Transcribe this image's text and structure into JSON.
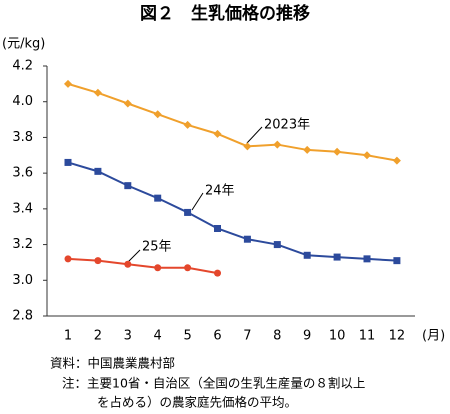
{
  "chart_data": {
    "type": "line",
    "title": "図２　生乳価格の推移",
    "y_label": "(元/kg)",
    "x_label": "(月)",
    "categories": [
      "1",
      "2",
      "3",
      "4",
      "5",
      "6",
      "7",
      "8",
      "9",
      "10",
      "11",
      "12"
    ],
    "series": [
      {
        "name": "2023年",
        "color": "#f0a02c",
        "marker": "diamond",
        "values": [
          4.1,
          4.05,
          3.99,
          3.93,
          3.87,
          3.82,
          3.75,
          3.76,
          3.73,
          3.72,
          3.7,
          3.67
        ]
      },
      {
        "name": "24年",
        "color": "#2c4a9c",
        "marker": "square",
        "values": [
          3.66,
          3.61,
          3.53,
          3.46,
          3.38,
          3.29,
          3.23,
          3.2,
          3.14,
          3.13,
          3.12,
          3.11
        ]
      },
      {
        "name": "25年",
        "color": "#e4472c",
        "marker": "circle",
        "values": [
          3.12,
          3.11,
          3.09,
          3.07,
          3.07,
          3.04,
          null,
          null,
          null,
          null,
          null,
          null
        ]
      }
    ],
    "ylim": [
      2.8,
      4.2
    ],
    "yticks": [
      2.8,
      {
        "value": 3,
        "label": "3.0"
      },
      3.2,
      3.4,
      3.6,
      3.8,
      {
        "value": 4,
        "label": "4.0"
      },
      4.2
    ],
    "grid": false,
    "notes": [
      "資料：中国農業農村部",
      "注：主要10省・自治区（全国の生乳生産量の８割以上",
      "を占める）の農家庭先価格の平均。"
    ]
  }
}
